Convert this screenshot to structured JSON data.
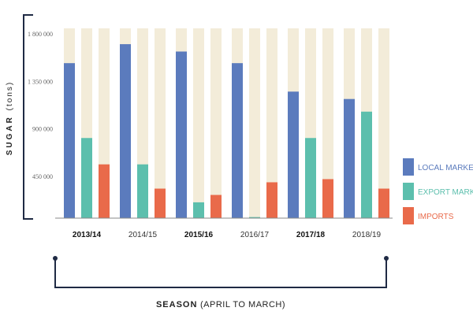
{
  "chart_data": {
    "type": "bar",
    "ylabel": "SUGAR",
    "ylabel_unit": "(tons)",
    "xlabel": "SEASON",
    "xlabel_sub": "(APRIL TO MARCH)",
    "categories": [
      "2013/14",
      "2014/15",
      "2015/16",
      "2016/17",
      "2017/18",
      "2018/19"
    ],
    "bold_categories": [
      "2013/14",
      "2015/16",
      "2017/18"
    ],
    "ylim": [
      0,
      1800000
    ],
    "yticks": [
      450000,
      900000,
      1350000,
      1800000
    ],
    "ytick_labels": [
      "450 000",
      "900 000",
      "1 350 000",
      "1 800 000"
    ],
    "legend_position": "right",
    "series": [
      {
        "name": "LOCAL MARKET",
        "color": "#5b7bbd",
        "values": [
          1470000,
          1650000,
          1580000,
          1470000,
          1200000,
          1130000
        ]
      },
      {
        "name": "EXPORT MARKET",
        "color": "#5cbfad",
        "values": [
          760000,
          510000,
          150000,
          10000,
          760000,
          1010000
        ]
      },
      {
        "name": "IMPORTS",
        "color": "#e96a4a",
        "values": [
          510000,
          280000,
          220000,
          340000,
          370000,
          280000
        ]
      }
    ],
    "background_color": "#f3ecd9",
    "axis_color": "#1f2a44"
  }
}
